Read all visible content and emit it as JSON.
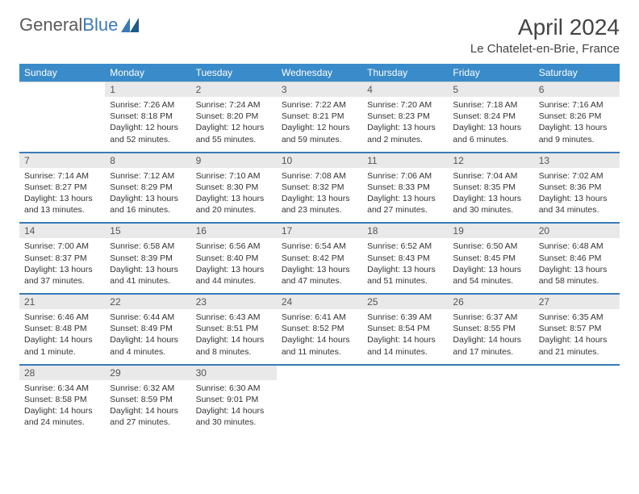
{
  "brand": {
    "part1": "General",
    "part2": "Blue"
  },
  "title": "April 2024",
  "location": "Le Chatelet-en-Brie, France",
  "colors": {
    "header_bg": "#3a8bc9",
    "header_text": "#ffffff",
    "daynum_bg": "#e9e9e9",
    "rule": "#3a7ab8",
    "text": "#333333",
    "logo_gray": "#5a5a5a",
    "logo_blue": "#3a7ab8"
  },
  "dow": [
    "Sunday",
    "Monday",
    "Tuesday",
    "Wednesday",
    "Thursday",
    "Friday",
    "Saturday"
  ],
  "weeks": [
    [
      null,
      {
        "n": "1",
        "sr": "7:26 AM",
        "ss": "8:18 PM",
        "dl": "12 hours and 52 minutes."
      },
      {
        "n": "2",
        "sr": "7:24 AM",
        "ss": "8:20 PM",
        "dl": "12 hours and 55 minutes."
      },
      {
        "n": "3",
        "sr": "7:22 AM",
        "ss": "8:21 PM",
        "dl": "12 hours and 59 minutes."
      },
      {
        "n": "4",
        "sr": "7:20 AM",
        "ss": "8:23 PM",
        "dl": "13 hours and 2 minutes."
      },
      {
        "n": "5",
        "sr": "7:18 AM",
        "ss": "8:24 PM",
        "dl": "13 hours and 6 minutes."
      },
      {
        "n": "6",
        "sr": "7:16 AM",
        "ss": "8:26 PM",
        "dl": "13 hours and 9 minutes."
      }
    ],
    [
      {
        "n": "7",
        "sr": "7:14 AM",
        "ss": "8:27 PM",
        "dl": "13 hours and 13 minutes."
      },
      {
        "n": "8",
        "sr": "7:12 AM",
        "ss": "8:29 PM",
        "dl": "13 hours and 16 minutes."
      },
      {
        "n": "9",
        "sr": "7:10 AM",
        "ss": "8:30 PM",
        "dl": "13 hours and 20 minutes."
      },
      {
        "n": "10",
        "sr": "7:08 AM",
        "ss": "8:32 PM",
        "dl": "13 hours and 23 minutes."
      },
      {
        "n": "11",
        "sr": "7:06 AM",
        "ss": "8:33 PM",
        "dl": "13 hours and 27 minutes."
      },
      {
        "n": "12",
        "sr": "7:04 AM",
        "ss": "8:35 PM",
        "dl": "13 hours and 30 minutes."
      },
      {
        "n": "13",
        "sr": "7:02 AM",
        "ss": "8:36 PM",
        "dl": "13 hours and 34 minutes."
      }
    ],
    [
      {
        "n": "14",
        "sr": "7:00 AM",
        "ss": "8:37 PM",
        "dl": "13 hours and 37 minutes."
      },
      {
        "n": "15",
        "sr": "6:58 AM",
        "ss": "8:39 PM",
        "dl": "13 hours and 41 minutes."
      },
      {
        "n": "16",
        "sr": "6:56 AM",
        "ss": "8:40 PM",
        "dl": "13 hours and 44 minutes."
      },
      {
        "n": "17",
        "sr": "6:54 AM",
        "ss": "8:42 PM",
        "dl": "13 hours and 47 minutes."
      },
      {
        "n": "18",
        "sr": "6:52 AM",
        "ss": "8:43 PM",
        "dl": "13 hours and 51 minutes."
      },
      {
        "n": "19",
        "sr": "6:50 AM",
        "ss": "8:45 PM",
        "dl": "13 hours and 54 minutes."
      },
      {
        "n": "20",
        "sr": "6:48 AM",
        "ss": "8:46 PM",
        "dl": "13 hours and 58 minutes."
      }
    ],
    [
      {
        "n": "21",
        "sr": "6:46 AM",
        "ss": "8:48 PM",
        "dl": "14 hours and 1 minute."
      },
      {
        "n": "22",
        "sr": "6:44 AM",
        "ss": "8:49 PM",
        "dl": "14 hours and 4 minutes."
      },
      {
        "n": "23",
        "sr": "6:43 AM",
        "ss": "8:51 PM",
        "dl": "14 hours and 8 minutes."
      },
      {
        "n": "24",
        "sr": "6:41 AM",
        "ss": "8:52 PM",
        "dl": "14 hours and 11 minutes."
      },
      {
        "n": "25",
        "sr": "6:39 AM",
        "ss": "8:54 PM",
        "dl": "14 hours and 14 minutes."
      },
      {
        "n": "26",
        "sr": "6:37 AM",
        "ss": "8:55 PM",
        "dl": "14 hours and 17 minutes."
      },
      {
        "n": "27",
        "sr": "6:35 AM",
        "ss": "8:57 PM",
        "dl": "14 hours and 21 minutes."
      }
    ],
    [
      {
        "n": "28",
        "sr": "6:34 AM",
        "ss": "8:58 PM",
        "dl": "14 hours and 24 minutes."
      },
      {
        "n": "29",
        "sr": "6:32 AM",
        "ss": "8:59 PM",
        "dl": "14 hours and 27 minutes."
      },
      {
        "n": "30",
        "sr": "6:30 AM",
        "ss": "9:01 PM",
        "dl": "14 hours and 30 minutes."
      },
      null,
      null,
      null,
      null
    ]
  ],
  "labels": {
    "sunrise": "Sunrise: ",
    "sunset": "Sunset: ",
    "daylight": "Daylight: "
  }
}
